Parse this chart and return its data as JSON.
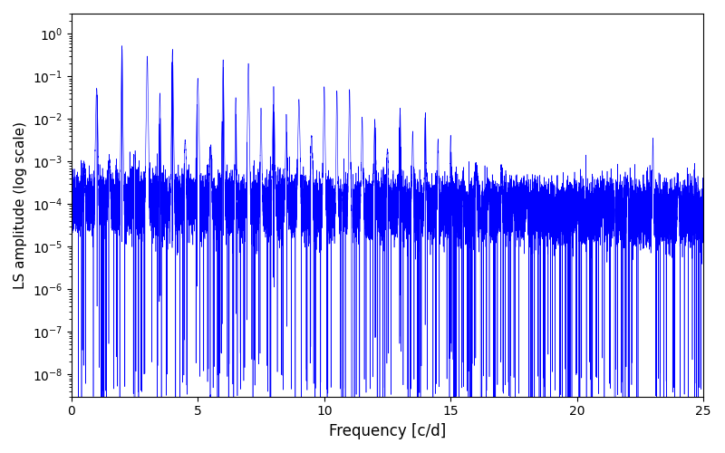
{
  "xlabel": "Frequency [c/d]",
  "ylabel": "LS amplitude (log scale)",
  "xlim": [
    0,
    25
  ],
  "ylim_bottom": 3e-09,
  "ylim_top": 3.0,
  "line_color": "#0000ff",
  "background_color": "#ffffff",
  "figsize": [
    8.0,
    5.0
  ],
  "dpi": 100,
  "ytick_labels": [
    "10$^{-8}$",
    "10$^{-6}$",
    "10$^{-4}$",
    "10$^{-2}$",
    "10$^{0}$"
  ],
  "ytick_values": [
    1e-08,
    1e-06,
    0.0001,
    0.01,
    1.0
  ],
  "xticks": [
    0,
    5,
    10,
    15,
    20,
    25
  ]
}
